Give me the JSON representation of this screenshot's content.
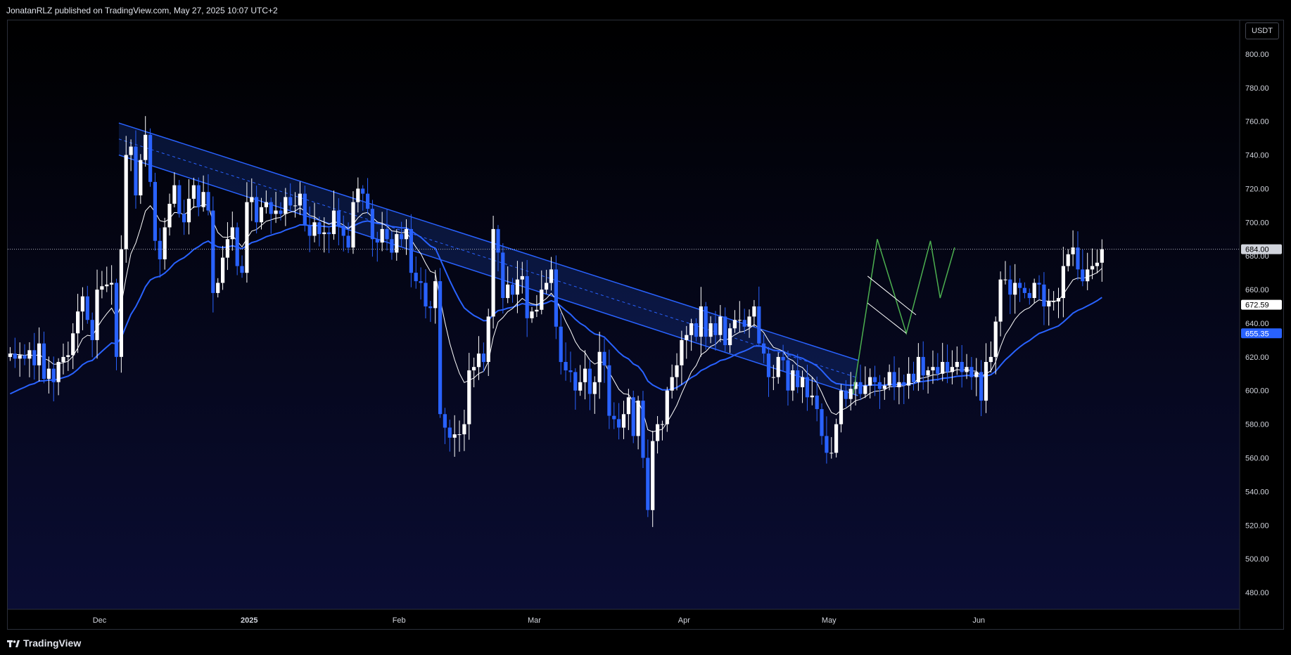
{
  "header": {
    "publisher_line": "JonatanRLZ published on TradingView.com, May 27, 2025 10:07 UTC+2"
  },
  "toolbar": {
    "currency_label": "USDT"
  },
  "footer": {
    "brand": "TradingView"
  },
  "colors": {
    "background_top": "#000000",
    "background_bottom": "#0a0d33",
    "bear_candle": "#2962ff",
    "bull_candle": "#ffffff",
    "ema_fast": "#ffffff",
    "ema_slow": "#2962ff",
    "channel_line": "#2962ff",
    "channel_fill": "rgba(41,98,255,0.18)",
    "pattern_green": "#4caf50",
    "axis_text": "#d1d4dc"
  },
  "chart_data": {
    "type": "candlestick",
    "title": "",
    "ylim": [
      470,
      820
    ],
    "y_ticks": [
      480,
      500,
      520,
      540,
      560,
      580,
      600,
      620,
      640,
      660,
      680,
      700,
      720,
      740,
      760,
      780,
      800
    ],
    "y_tick_labels": [
      "480.00",
      "500.00",
      "520.00",
      "540.00",
      "560.00",
      "580.00",
      "600.00",
      "620.00",
      "640.00",
      "660.00",
      "680.00",
      "700.00",
      "720.00",
      "740.00",
      "760.00",
      "780.00",
      "800.00"
    ],
    "x_range": [
      "2024-11-12",
      "2025-07-25"
    ],
    "x_ticks": [
      {
        "date": "2024-12-01",
        "label": "Dec"
      },
      {
        "date": "2025-01-01",
        "label": "2025"
      },
      {
        "date": "2025-02-01",
        "label": "Feb"
      },
      {
        "date": "2025-03-01",
        "label": "Mar"
      },
      {
        "date": "2025-04-01",
        "label": "Apr"
      },
      {
        "date": "2025-05-01",
        "label": "May"
      },
      {
        "date": "2025-06-01",
        "label": "Jun"
      }
    ],
    "start_date": "2024-11-12",
    "closes": [
      622,
      619,
      621,
      619,
      624,
      615,
      628,
      607,
      613,
      605,
      617,
      620,
      621,
      634,
      647,
      656,
      642,
      630,
      660,
      662,
      663,
      664,
      620,
      684,
      740,
      745,
      716,
      737,
      752,
      724,
      689,
      678,
      697,
      711,
      722,
      705,
      700,
      714,
      722,
      709,
      718,
      707,
      658,
      664,
      679,
      690,
      697,
      674,
      670,
      712,
      715,
      700,
      709,
      712,
      705,
      707,
      705,
      715,
      710,
      710,
      717,
      698,
      692,
      700,
      693,
      694,
      693,
      707,
      698,
      692,
      685,
      712,
      720,
      717,
      708,
      690,
      688,
      696,
      690,
      682,
      693,
      690,
      696,
      670,
      665,
      664,
      650,
      649,
      665,
      586,
      578,
      572,
      574,
      574,
      580,
      612,
      614,
      622,
      617,
      644,
      696,
      682,
      655,
      663,
      657,
      666,
      668,
      643,
      647,
      648,
      660,
      664,
      672,
      638,
      617,
      612,
      611,
      600,
      605,
      613,
      598,
      605,
      623,
      615,
      585,
      583,
      578,
      586,
      596,
      573,
      594,
      560,
      529,
      570,
      580,
      580,
      600,
      608,
      615,
      630,
      633,
      640,
      632,
      650,
      632,
      640,
      633,
      644,
      627,
      637,
      642,
      642,
      638,
      644,
      650,
      628,
      622,
      608,
      608,
      620,
      618,
      600,
      612,
      602,
      608,
      596,
      597,
      589,
      573,
      563,
      563,
      580,
      600,
      595,
      601,
      605,
      598,
      603,
      608,
      605,
      601,
      603,
      611,
      602,
      605,
      603,
      610,
      605,
      620,
      609,
      612,
      614,
      610,
      617,
      611,
      614,
      617,
      611,
      614,
      608,
      611,
      594,
      617,
      620,
      641,
      666,
      666,
      657,
      664,
      661,
      658,
      655,
      664,
      663,
      650,
      653,
      653,
      655,
      674,
      681,
      685,
      672,
      665,
      672,
      674,
      676,
      684
    ]
  }
}
